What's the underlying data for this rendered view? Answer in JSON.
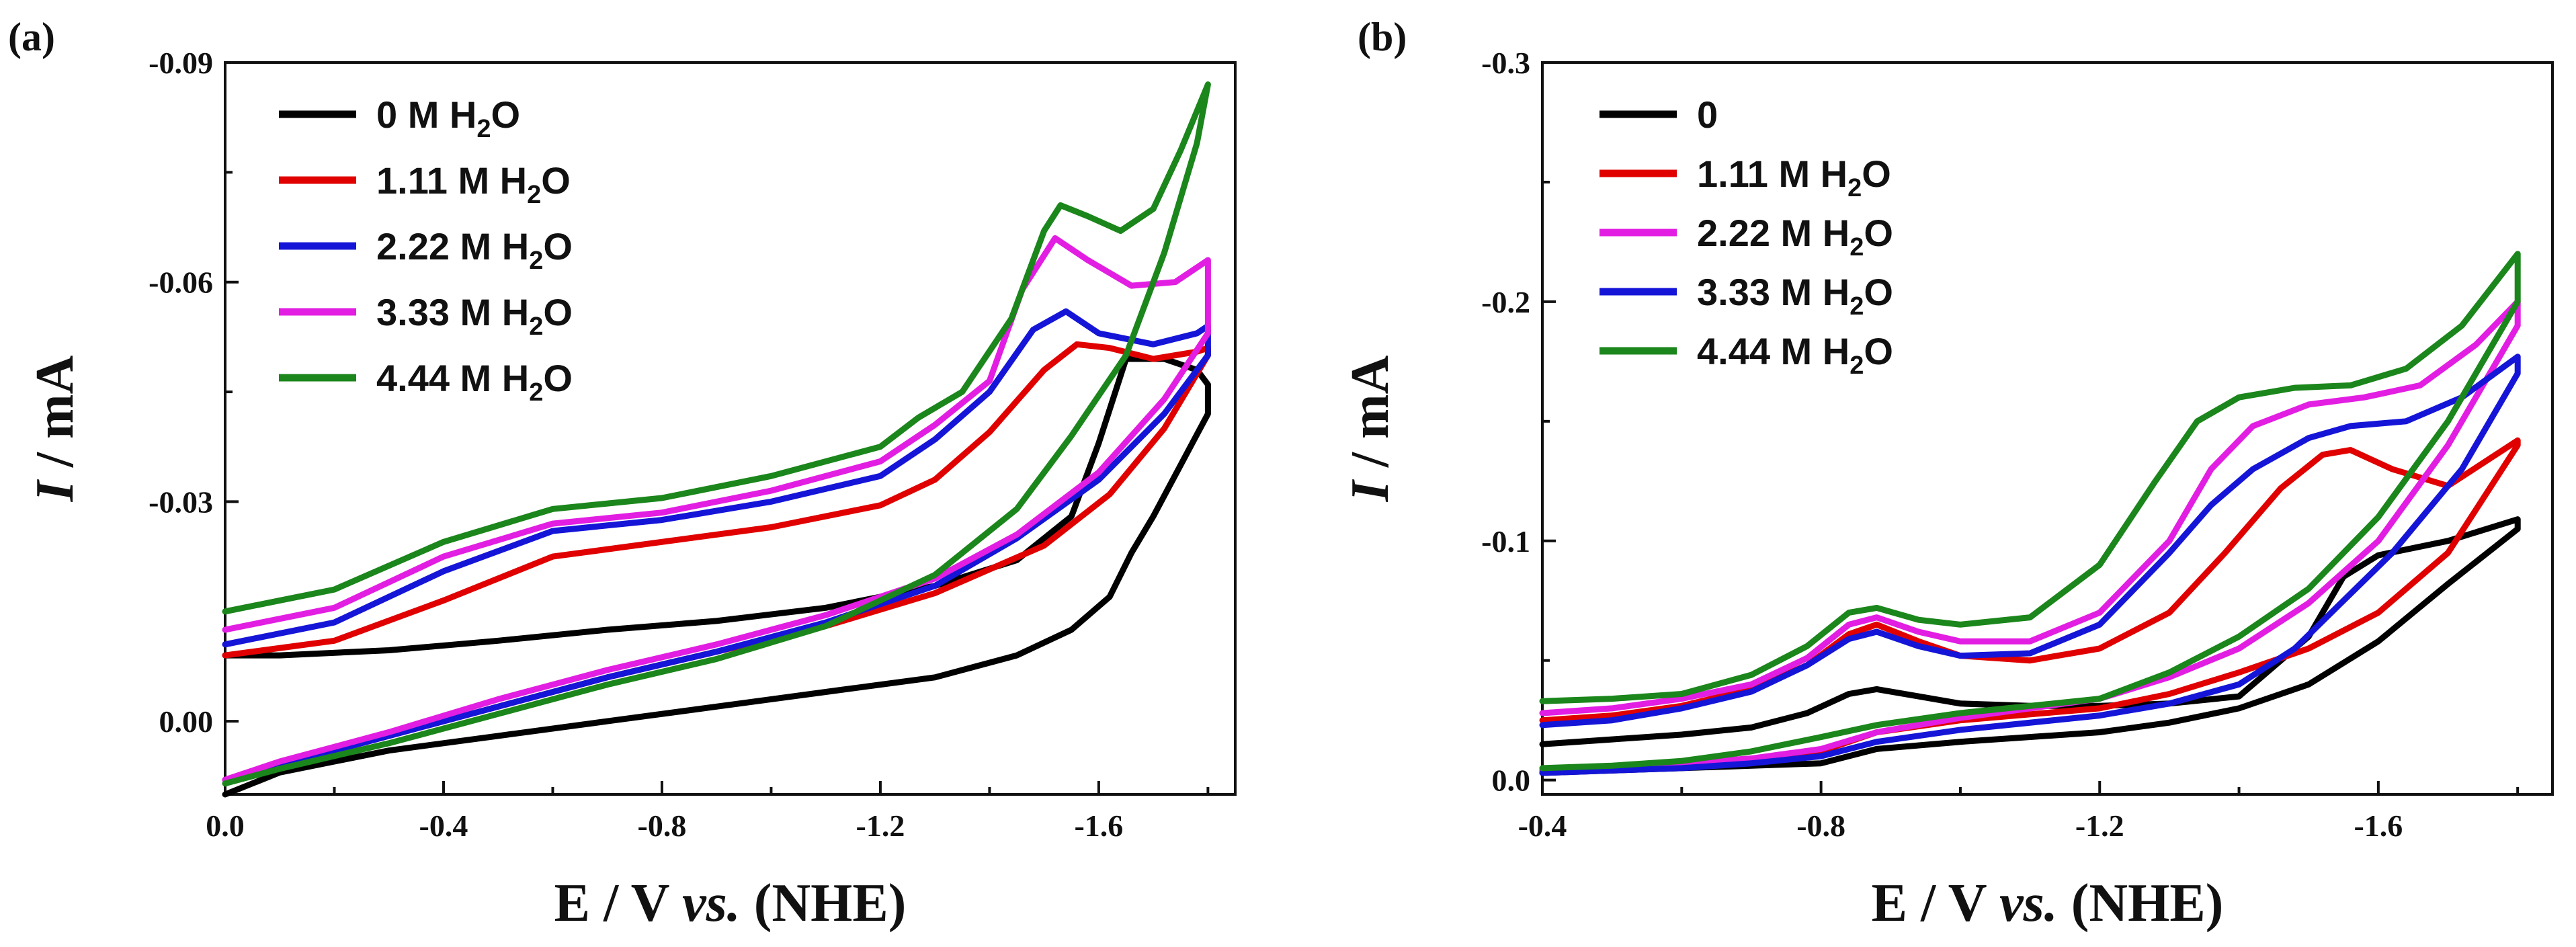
{
  "chart_data": [
    {
      "panel": "(a)",
      "type": "line",
      "xlabel": "E / V vs. (NHE)",
      "xlabel_parts": [
        "E / V ",
        "vs.",
        " (NHE)"
      ],
      "ylabel": "I / mA",
      "ylabel_parts": [
        "I",
        " / mA"
      ],
      "xlim": [
        0.0,
        -1.85
      ],
      "ylim": [
        0.01,
        -0.09
      ],
      "xticks": [
        0.0,
        -0.4,
        -0.8,
        -1.2,
        -1.6
      ],
      "xtick_labels": [
        "0.0",
        "-0.4",
        "-0.8",
        "-1.2",
        "-1.6"
      ],
      "yticks": [
        0.0,
        -0.03,
        -0.06,
        -0.09
      ],
      "ytick_labels": [
        "0.00",
        "-0.03",
        "-0.06",
        "-0.09"
      ],
      "legend_position": "top-left",
      "series": [
        {
          "name": "0 M H2O",
          "label_parts": [
            "0 M H",
            "2",
            "O"
          ],
          "color": "#000000",
          "x": [
            0.0,
            -0.1,
            -0.3,
            -0.5,
            -0.7,
            -0.9,
            -1.1,
            -1.3,
            -1.45,
            -1.55,
            -1.6,
            -1.65,
            -1.72,
            -1.78,
            -1.8,
            -1.8,
            -1.75,
            -1.7,
            -1.66,
            -1.62,
            -1.55,
            -1.45,
            -1.3,
            -1.1,
            -0.9,
            -0.7,
            -0.5,
            -0.3,
            -0.1,
            0.0
          ],
          "y": [
            -0.009,
            -0.009,
            -0.0097,
            -0.011,
            -0.0125,
            -0.0137,
            -0.0155,
            -0.0185,
            -0.022,
            -0.028,
            -0.038,
            -0.0495,
            -0.0495,
            -0.048,
            -0.046,
            -0.042,
            -0.035,
            -0.028,
            -0.023,
            -0.017,
            -0.0125,
            -0.009,
            -0.006,
            -0.004,
            -0.002,
            0.0,
            0.002,
            0.004,
            0.007,
            0.01
          ]
        },
        {
          "name": "1.11 M H2O",
          "label_parts": [
            "1.11 M H",
            "2",
            "O"
          ],
          "color": "#e00000",
          "x": [
            0.0,
            -0.2,
            -0.4,
            -0.6,
            -0.8,
            -1.0,
            -1.2,
            -1.3,
            -1.4,
            -1.5,
            -1.56,
            -1.62,
            -1.7,
            -1.78,
            -1.8,
            -1.8,
            -1.72,
            -1.62,
            -1.5,
            -1.3,
            -1.1,
            -0.9,
            -0.7,
            -0.5,
            -0.3,
            -0.1,
            0.0
          ],
          "y": [
            -0.009,
            -0.011,
            -0.0165,
            -0.0225,
            -0.0245,
            -0.0265,
            -0.0295,
            -0.033,
            -0.0395,
            -0.048,
            -0.0515,
            -0.051,
            -0.0495,
            -0.0505,
            -0.051,
            -0.05,
            -0.04,
            -0.031,
            -0.024,
            -0.0175,
            -0.013,
            -0.0095,
            -0.006,
            -0.002,
            0.002,
            0.006,
            0.008
          ]
        },
        {
          "name": "2.22 M H2O",
          "label_parts": [
            "2.22 M H",
            "2",
            "O"
          ],
          "color": "#1515d8",
          "x": [
            0.0,
            -0.2,
            -0.4,
            -0.6,
            -0.8,
            -1.0,
            -1.2,
            -1.3,
            -1.4,
            -1.48,
            -1.54,
            -1.6,
            -1.7,
            -1.78,
            -1.8,
            -1.8,
            -1.72,
            -1.6,
            -1.45,
            -1.3,
            -1.1,
            -0.9,
            -0.7,
            -0.5,
            -0.3,
            -0.1,
            0.0
          ],
          "y": [
            -0.0105,
            -0.0135,
            -0.0205,
            -0.026,
            -0.0275,
            -0.03,
            -0.0335,
            -0.0385,
            -0.045,
            -0.0535,
            -0.056,
            -0.053,
            -0.0515,
            -0.053,
            -0.054,
            -0.05,
            -0.042,
            -0.033,
            -0.025,
            -0.0185,
            -0.0135,
            -0.0095,
            -0.006,
            -0.002,
            0.002,
            0.006,
            0.008
          ]
        },
        {
          "name": "3.33 M H2O",
          "label_parts": [
            "3.33 M H",
            "2",
            "O"
          ],
          "color": "#e21ee2",
          "x": [
            0.0,
            -0.2,
            -0.4,
            -0.6,
            -0.8,
            -1.0,
            -1.2,
            -1.3,
            -1.4,
            -1.46,
            -1.52,
            -1.58,
            -1.66,
            -1.74,
            -1.8,
            -1.8,
            -1.72,
            -1.6,
            -1.45,
            -1.3,
            -1.1,
            -0.9,
            -0.7,
            -0.5,
            -0.3,
            -0.1,
            0.0
          ],
          "y": [
            -0.0125,
            -0.0155,
            -0.0225,
            -0.027,
            -0.0285,
            -0.0315,
            -0.0355,
            -0.0405,
            -0.0465,
            -0.059,
            -0.066,
            -0.063,
            -0.0595,
            -0.06,
            -0.063,
            -0.053,
            -0.044,
            -0.034,
            -0.0255,
            -0.0195,
            -0.0145,
            -0.0105,
            -0.007,
            -0.003,
            0.0015,
            0.0055,
            0.008
          ]
        },
        {
          "name": "4.44 M H2O",
          "label_parts": [
            "4.44 M H",
            "2",
            "O"
          ],
          "color": "#1b861b",
          "x": [
            0.0,
            -0.2,
            -0.4,
            -0.6,
            -0.8,
            -1.0,
            -1.2,
            -1.27,
            -1.35,
            -1.44,
            -1.5,
            -1.53,
            -1.58,
            -1.64,
            -1.7,
            -1.75,
            -1.8,
            -1.78,
            -1.72,
            -1.65,
            -1.55,
            -1.45,
            -1.3,
            -1.1,
            -0.9,
            -0.7,
            -0.5,
            -0.3,
            -0.1,
            0.0
          ],
          "y": [
            -0.015,
            -0.018,
            -0.0245,
            -0.029,
            -0.0305,
            -0.0335,
            -0.0375,
            -0.0415,
            -0.045,
            -0.055,
            -0.067,
            -0.0705,
            -0.069,
            -0.067,
            -0.07,
            -0.078,
            -0.087,
            -0.079,
            -0.064,
            -0.05,
            -0.039,
            -0.029,
            -0.02,
            -0.013,
            -0.0085,
            -0.005,
            -0.001,
            0.003,
            0.0065,
            0.0085
          ]
        }
      ]
    },
    {
      "panel": "(b)",
      "type": "line",
      "xlabel": "E / V vs. (NHE)",
      "xlabel_parts": [
        "E / V ",
        "vs.",
        " (NHE)"
      ],
      "ylabel": "I / mA",
      "ylabel_parts": [
        "I",
        " / mA"
      ],
      "xlim": [
        -0.4,
        -1.85
      ],
      "ylim": [
        0.006,
        -0.3
      ],
      "xticks": [
        -0.4,
        -0.8,
        -1.2,
        -1.6
      ],
      "xtick_labels": [
        "-0.4",
        "-0.8",
        "-1.2",
        "-1.6"
      ],
      "yticks": [
        0.0,
        -0.1,
        -0.2,
        -0.3
      ],
      "ytick_labels": [
        "0.0",
        "-0.1",
        "-0.2",
        "-0.3"
      ],
      "legend_position": "top-left",
      "series": [
        {
          "name": "0",
          "label_parts": [
            "0",
            "",
            ""
          ],
          "color": "#000000",
          "x": [
            -0.4,
            -0.5,
            -0.6,
            -0.7,
            -0.78,
            -0.84,
            -0.88,
            -0.94,
            -1.0,
            -1.1,
            -1.2,
            -1.3,
            -1.4,
            -1.5,
            -1.55,
            -1.6,
            -1.7,
            -1.8,
            -1.8,
            -1.7,
            -1.6,
            -1.5,
            -1.4,
            -1.3,
            -1.2,
            -1.0,
            -0.88,
            -0.8,
            -0.7,
            -0.6,
            -0.5,
            -0.4
          ],
          "y": [
            -0.015,
            -0.017,
            -0.019,
            -0.022,
            -0.028,
            -0.036,
            -0.038,
            -0.035,
            -0.032,
            -0.031,
            -0.031,
            -0.032,
            -0.035,
            -0.06,
            -0.085,
            -0.094,
            -0.1,
            -0.109,
            -0.105,
            -0.082,
            -0.058,
            -0.04,
            -0.03,
            -0.024,
            -0.02,
            -0.016,
            -0.013,
            -0.007,
            -0.006,
            -0.005,
            -0.004,
            -0.003
          ]
        },
        {
          "name": "1.11 M H2O",
          "label_parts": [
            "1.11 M H",
            "2",
            "O"
          ],
          "color": "#e00000",
          "x": [
            -0.4,
            -0.5,
            -0.6,
            -0.7,
            -0.78,
            -0.84,
            -0.88,
            -0.94,
            -1.0,
            -1.1,
            -1.2,
            -1.3,
            -1.38,
            -1.46,
            -1.52,
            -1.56,
            -1.62,
            -1.7,
            -1.8,
            -1.8,
            -1.7,
            -1.6,
            -1.5,
            -1.4,
            -1.3,
            -1.2,
            -1.0,
            -0.88,
            -0.8,
            -0.7,
            -0.6,
            -0.5,
            -0.4
          ],
          "y": [
            -0.025,
            -0.027,
            -0.031,
            -0.038,
            -0.048,
            -0.061,
            -0.065,
            -0.058,
            -0.052,
            -0.05,
            -0.055,
            -0.07,
            -0.095,
            -0.122,
            -0.136,
            -0.138,
            -0.13,
            -0.123,
            -0.142,
            -0.14,
            -0.095,
            -0.07,
            -0.055,
            -0.045,
            -0.036,
            -0.03,
            -0.025,
            -0.02,
            -0.012,
            -0.009,
            -0.007,
            -0.005,
            -0.004
          ]
        },
        {
          "name": "2.22 M H2O",
          "label_parts": [
            "2.22 M H",
            "2",
            "O"
          ],
          "color": "#e21ee2",
          "x": [
            -0.4,
            -0.5,
            -0.6,
            -0.7,
            -0.78,
            -0.84,
            -0.88,
            -0.94,
            -1.0,
            -1.1,
            -1.2,
            -1.3,
            -1.36,
            -1.42,
            -1.5,
            -1.58,
            -1.66,
            -1.74,
            -1.8,
            -1.8,
            -1.7,
            -1.6,
            -1.5,
            -1.4,
            -1.3,
            -1.2,
            -1.0,
            -0.88,
            -0.8,
            -0.7,
            -0.6,
            -0.5,
            -0.4
          ],
          "y": [
            -0.028,
            -0.03,
            -0.034,
            -0.04,
            -0.051,
            -0.065,
            -0.068,
            -0.062,
            -0.058,
            -0.058,
            -0.07,
            -0.1,
            -0.13,
            -0.148,
            -0.157,
            -0.16,
            -0.165,
            -0.182,
            -0.2,
            -0.19,
            -0.14,
            -0.1,
            -0.074,
            -0.055,
            -0.043,
            -0.034,
            -0.026,
            -0.02,
            -0.013,
            -0.009,
            -0.007,
            -0.005,
            -0.004
          ]
        },
        {
          "name": "3.33 M H2O",
          "label_parts": [
            "3.33 M H",
            "2",
            "O"
          ],
          "color": "#1515d8",
          "x": [
            -0.4,
            -0.5,
            -0.6,
            -0.7,
            -0.78,
            -0.84,
            -0.88,
            -0.94,
            -1.0,
            -1.1,
            -1.2,
            -1.3,
            -1.36,
            -1.42,
            -1.5,
            -1.56,
            -1.64,
            -1.72,
            -1.8,
            -1.8,
            -1.72,
            -1.62,
            -1.55,
            -1.48,
            -1.4,
            -1.3,
            -1.2,
            -1.0,
            -0.88,
            -0.8,
            -0.7,
            -0.6,
            -0.5,
            -0.4
          ],
          "y": [
            -0.023,
            -0.025,
            -0.03,
            -0.037,
            -0.048,
            -0.059,
            -0.062,
            -0.056,
            -0.052,
            -0.053,
            -0.065,
            -0.095,
            -0.115,
            -0.13,
            -0.143,
            -0.148,
            -0.15,
            -0.16,
            -0.177,
            -0.17,
            -0.13,
            -0.095,
            -0.075,
            -0.055,
            -0.04,
            -0.032,
            -0.027,
            -0.021,
            -0.016,
            -0.01,
            -0.007,
            -0.005,
            -0.004,
            -0.003
          ]
        },
        {
          "name": "4.44 M H2O",
          "label_parts": [
            "4.44 M H",
            "2",
            "O"
          ],
          "color": "#1b861b",
          "x": [
            -0.4,
            -0.5,
            -0.6,
            -0.7,
            -0.78,
            -0.84,
            -0.88,
            -0.94,
            -1.0,
            -1.1,
            -1.2,
            -1.28,
            -1.34,
            -1.4,
            -1.48,
            -1.56,
            -1.64,
            -1.72,
            -1.8,
            -1.8,
            -1.7,
            -1.6,
            -1.5,
            -1.4,
            -1.3,
            -1.2,
            -1.0,
            -0.88,
            -0.8,
            -0.7,
            -0.6,
            -0.5,
            -0.4
          ],
          "y": [
            -0.033,
            -0.034,
            -0.036,
            -0.044,
            -0.056,
            -0.07,
            -0.072,
            -0.067,
            -0.065,
            -0.068,
            -0.09,
            -0.125,
            -0.15,
            -0.16,
            -0.164,
            -0.165,
            -0.172,
            -0.19,
            -0.22,
            -0.2,
            -0.15,
            -0.11,
            -0.08,
            -0.06,
            -0.045,
            -0.034,
            -0.028,
            -0.023,
            -0.018,
            -0.012,
            -0.008,
            -0.006,
            -0.005
          ]
        }
      ]
    }
  ]
}
